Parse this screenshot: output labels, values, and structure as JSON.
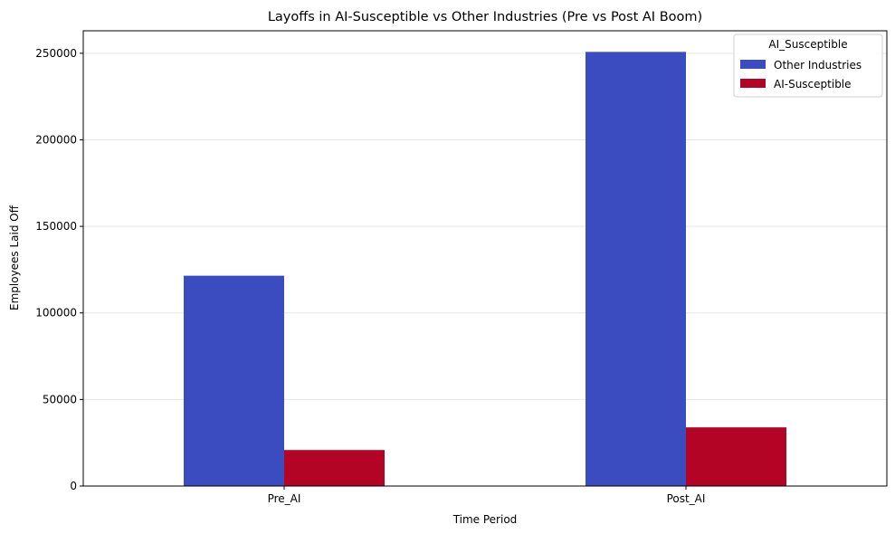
{
  "chart_data": {
    "type": "bar",
    "title": "Layoffs in AI-Susceptible vs Other Industries (Pre vs Post AI Boom)",
    "xlabel": "Time Period",
    "ylabel": "Employees Laid Off",
    "categories": [
      "Pre_AI",
      "Post_AI"
    ],
    "series": [
      {
        "name": "Other Industries",
        "values": [
          121500,
          250800
        ],
        "color": "#3b4cc0"
      },
      {
        "name": "AI-Susceptible",
        "values": [
          20800,
          33900
        ],
        "color": "#b40426"
      }
    ],
    "ylim": [
      0,
      263000
    ],
    "yticks": [
      0,
      50000,
      100000,
      150000,
      200000,
      250000
    ],
    "legend": {
      "title": "AI_Susceptible",
      "placement": "top-right"
    },
    "grid": "horizontal"
  }
}
